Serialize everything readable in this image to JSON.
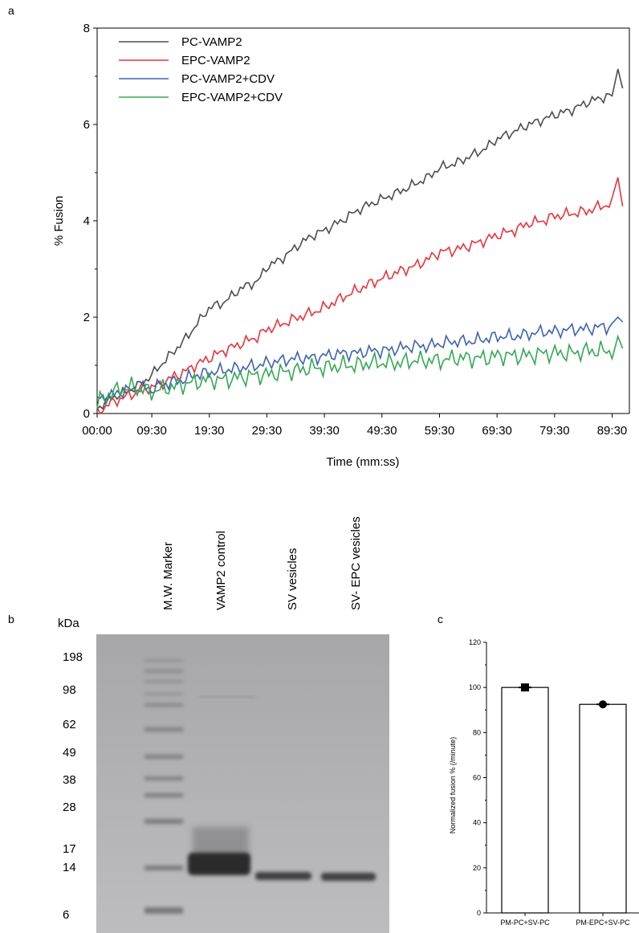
{
  "panels": {
    "a": "a",
    "b": "b",
    "c": "c"
  },
  "chart_data": [
    {
      "type": "line",
      "xlabel": "Time (mm:ss)",
      "ylabel": "% Fusion",
      "xlim": [
        0,
        5550
      ],
      "ylim": [
        0,
        8
      ],
      "x_ticks": [
        {
          "seconds": 0,
          "label": "00:00"
        },
        {
          "seconds": 570,
          "label": "09:30"
        },
        {
          "seconds": 1170,
          "label": "19:30"
        },
        {
          "seconds": 1770,
          "label": "29:30"
        },
        {
          "seconds": 2370,
          "label": "39:30"
        },
        {
          "seconds": 2970,
          "label": "49:30"
        },
        {
          "seconds": 3570,
          "label": "59:30"
        },
        {
          "seconds": 4170,
          "label": "69:30"
        },
        {
          "seconds": 4770,
          "label": "79:30"
        },
        {
          "seconds": 5370,
          "label": "89:30"
        }
      ],
      "y_ticks": [
        {
          "value": 0,
          "label": "0"
        },
        {
          "value": 2,
          "label": "2"
        },
        {
          "value": 4,
          "label": "4"
        },
        {
          "value": 6,
          "label": "6"
        },
        {
          "value": 8,
          "label": "8"
        }
      ],
      "grid": false,
      "legend_position": "top-left",
      "series": [
        {
          "name": "PC-VAMP2",
          "color": "#4d4d4d",
          "x": [
            0,
            120,
            240,
            360,
            480,
            570,
            660,
            780,
            900,
            1020,
            1170,
            1320,
            1500,
            1680,
            1770,
            1920,
            2100,
            2250,
            2370,
            2550,
            2700,
            2850,
            2970,
            3150,
            3300,
            3450,
            3570,
            3750,
            3900,
            4050,
            4170,
            4350,
            4500,
            4650,
            4770,
            4950,
            5100,
            5250,
            5370,
            5430,
            5480
          ],
          "y": [
            0.1,
            0.3,
            0.4,
            0.5,
            0.65,
            0.8,
            1.0,
            1.25,
            1.5,
            1.8,
            2.2,
            2.3,
            2.6,
            2.75,
            3.05,
            3.2,
            3.5,
            3.7,
            3.8,
            4.0,
            4.2,
            4.35,
            4.45,
            4.6,
            4.75,
            4.9,
            5.1,
            5.2,
            5.35,
            5.5,
            5.7,
            5.85,
            6.0,
            6.1,
            6.2,
            6.3,
            6.45,
            6.55,
            6.6,
            7.15,
            6.75
          ]
        },
        {
          "name": "EPC-VAMP2",
          "color": "#e8333b",
          "x": [
            0,
            120,
            240,
            360,
            480,
            570,
            660,
            780,
            900,
            1020,
            1170,
            1320,
            1500,
            1680,
            1770,
            1920,
            2100,
            2250,
            2370,
            2550,
            2700,
            2850,
            2970,
            3150,
            3300,
            3450,
            3570,
            3750,
            3900,
            4050,
            4170,
            4350,
            4500,
            4650,
            4770,
            4950,
            5100,
            5250,
            5370,
            5430,
            5480
          ],
          "y": [
            0.0,
            0.2,
            0.3,
            0.4,
            0.5,
            0.55,
            0.6,
            0.75,
            0.85,
            1.0,
            1.15,
            1.3,
            1.45,
            1.6,
            1.75,
            1.85,
            2.0,
            2.1,
            2.2,
            2.4,
            2.55,
            2.7,
            2.8,
            2.95,
            3.05,
            3.2,
            3.35,
            3.4,
            3.5,
            3.6,
            3.7,
            3.8,
            3.95,
            4.0,
            4.1,
            4.15,
            4.2,
            4.3,
            4.35,
            4.9,
            4.3
          ]
        },
        {
          "name": "PC-VAMP2+CDV",
          "color": "#3d62b3",
          "x": [
            0,
            120,
            240,
            360,
            480,
            570,
            660,
            780,
            900,
            1020,
            1170,
            1320,
            1500,
            1680,
            1770,
            1920,
            2100,
            2250,
            2370,
            2550,
            2700,
            2850,
            2970,
            3150,
            3300,
            3450,
            3570,
            3750,
            3900,
            4050,
            4170,
            4350,
            4500,
            4650,
            4770,
            4950,
            5100,
            5250,
            5370,
            5430,
            5480
          ],
          "y": [
            0.3,
            0.35,
            0.45,
            0.5,
            0.55,
            0.5,
            0.6,
            0.65,
            0.7,
            0.8,
            0.85,
            0.9,
            0.95,
            1.0,
            1.05,
            1.1,
            1.15,
            1.15,
            1.2,
            1.25,
            1.25,
            1.3,
            1.3,
            1.35,
            1.4,
            1.4,
            1.45,
            1.5,
            1.5,
            1.55,
            1.6,
            1.6,
            1.65,
            1.7,
            1.7,
            1.75,
            1.75,
            1.8,
            1.8,
            2.0,
            1.9
          ]
        },
        {
          "name": "EPC-VAMP2+CDV",
          "color": "#35a853",
          "x": [
            0,
            120,
            240,
            360,
            480,
            570,
            660,
            780,
            900,
            1020,
            1170,
            1320,
            1500,
            1680,
            1770,
            1920,
            2100,
            2250,
            2370,
            2550,
            2700,
            2850,
            2970,
            3150,
            3300,
            3450,
            3570,
            3750,
            3900,
            4050,
            4170,
            4350,
            4500,
            4650,
            4770,
            4950,
            5100,
            5250,
            5370,
            5430,
            5480
          ],
          "y": [
            0.2,
            0.4,
            0.5,
            0.55,
            0.5,
            0.45,
            0.5,
            0.55,
            0.6,
            0.65,
            0.7,
            0.7,
            0.75,
            0.8,
            0.8,
            0.85,
            0.9,
            0.95,
            0.95,
            1.0,
            1.0,
            1.05,
            1.05,
            1.05,
            1.1,
            1.1,
            1.1,
            1.15,
            1.15,
            1.15,
            1.2,
            1.2,
            1.2,
            1.25,
            1.25,
            1.25,
            1.3,
            1.3,
            1.3,
            1.6,
            1.35
          ]
        }
      ]
    },
    {
      "type": "bar",
      "ylabel": "Normalized fusion % (/minute)",
      "ylim": [
        0,
        120
      ],
      "y_ticks": [
        0,
        20,
        40,
        60,
        80,
        100,
        120
      ],
      "categories": [
        "PM-PC+SV-PC",
        "PM-EPC+SV-PC"
      ],
      "values": [
        100,
        92.5
      ],
      "markers": [
        "square",
        "circle"
      ],
      "grid": false
    }
  ],
  "gel": {
    "unit_label": "kDa",
    "marker_labels": [
      "198",
      "98",
      "62",
      "49",
      "38",
      "28",
      "17",
      "14",
      "6"
    ],
    "lane_labels": [
      "M.W. Marker",
      "VAMP2 control",
      "SV vesicles",
      "SV- EPC vesicles"
    ]
  }
}
